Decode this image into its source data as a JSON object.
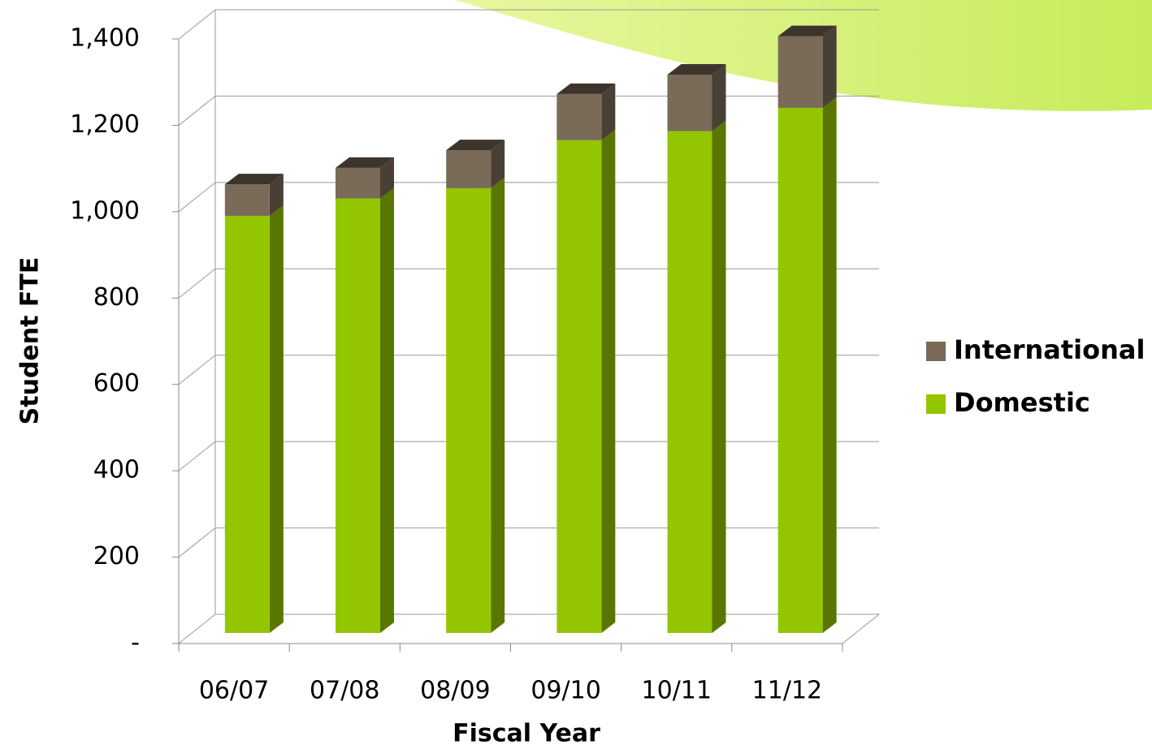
{
  "chart_data": {
    "type": "bar3d-stacked",
    "x_label": "Fiscal Year",
    "y_label": "Student FTE",
    "categories": [
      "06/07",
      "07/08",
      "08/09",
      "09/10",
      "10/11",
      "11/12"
    ],
    "series": [
      {
        "name": "Domestic",
        "color": "#94c600",
        "values": [
          966,
          1006,
          1030,
          1141,
          1162,
          1216
        ]
      },
      {
        "name": "International",
        "color": "#7a6a58",
        "values": [
          73,
          71,
          88,
          107,
          131,
          166
        ]
      }
    ],
    "ylim": [
      0,
      1400
    ],
    "yticks": [
      {
        "value": 0,
        "label": "-"
      },
      200,
      400,
      600,
      800,
      {
        "value": 1000,
        "label": "1,000"
      },
      {
        "value": 1200,
        "label": "1,200"
      },
      {
        "value": 1400,
        "label": "1,400"
      }
    ],
    "grid": true,
    "legend": "right"
  }
}
